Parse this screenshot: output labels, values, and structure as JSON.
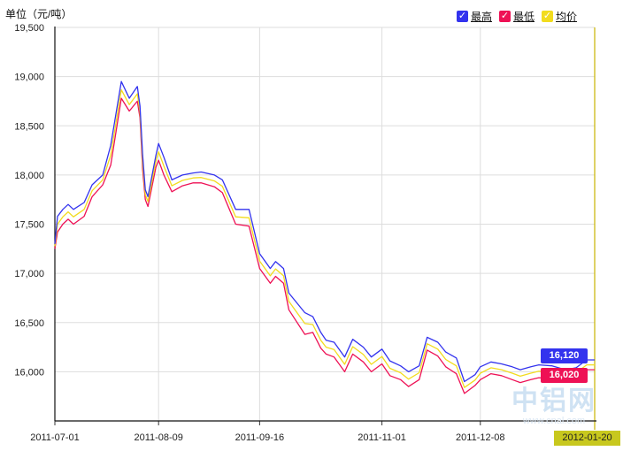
{
  "unit_label": "单位（元/吨）",
  "legend": [
    {
      "key": "high",
      "label": "最高",
      "color": "#3333ee",
      "checked": true
    },
    {
      "key": "low",
      "label": "最低",
      "color": "#ee1155",
      "checked": true
    },
    {
      "key": "avg",
      "label": "均价",
      "color": "#f2dc1e",
      "checked": true
    }
  ],
  "badges": {
    "high_value": "16,120",
    "low_value": "16,020"
  },
  "current_date": "2012-01-20",
  "watermark": {
    "big": "中铝网",
    "small": "www.cnal.com"
  },
  "chart_data": {
    "type": "line",
    "x_ticks": [
      "2011-07-01",
      "2011-08-09",
      "2011-09-16",
      "2011-11-01",
      "2011-12-08"
    ],
    "x_range": [
      "2011-07-01",
      "2012-01-20"
    ],
    "y_ticks": [
      "16,000",
      "16,500",
      "17,000",
      "17,500",
      "18,000",
      "18,500",
      "19,000",
      "19,500"
    ],
    "ylim": [
      15500,
      19500
    ],
    "grid": true,
    "legend_position": "top-right",
    "x": [
      "2011-07-01",
      "2011-07-02",
      "2011-07-04",
      "2011-07-06",
      "2011-07-08",
      "2011-07-12",
      "2011-07-15",
      "2011-07-19",
      "2011-07-22",
      "2011-07-26",
      "2011-07-29",
      "2011-08-01",
      "2011-08-02",
      "2011-08-03",
      "2011-08-04",
      "2011-08-05",
      "2011-08-08",
      "2011-08-09",
      "2011-08-11",
      "2011-08-14",
      "2011-08-18",
      "2011-08-22",
      "2011-08-25",
      "2011-08-30",
      "2011-09-02",
      "2011-09-07",
      "2011-09-12",
      "2011-09-16",
      "2011-09-20",
      "2011-09-22",
      "2011-09-25",
      "2011-09-27",
      "2011-10-03",
      "2011-10-06",
      "2011-10-09",
      "2011-10-11",
      "2011-10-14",
      "2011-10-18",
      "2011-10-21",
      "2011-10-25",
      "2011-10-28",
      "2011-11-01",
      "2011-11-04",
      "2011-11-08",
      "2011-11-11",
      "2011-11-15",
      "2011-11-18",
      "2011-11-22",
      "2011-11-25",
      "2011-11-29",
      "2011-12-02",
      "2011-12-06",
      "2011-12-08",
      "2011-12-12",
      "2011-12-16",
      "2011-12-20",
      "2011-12-23",
      "2011-12-27",
      "2011-12-30",
      "2012-01-04",
      "2012-01-09",
      "2012-01-13",
      "2012-01-17",
      "2012-01-20"
    ],
    "series": [
      {
        "name": "最高",
        "color": "#3333ee",
        "values": [
          17300,
          17580,
          17650,
          17700,
          17650,
          17720,
          17900,
          18000,
          18300,
          18950,
          18780,
          18900,
          18700,
          18200,
          17850,
          17780,
          18200,
          18320,
          18180,
          17950,
          18000,
          18020,
          18030,
          18000,
          17950,
          17650,
          17650,
          17200,
          17050,
          17120,
          17050,
          16800,
          16600,
          16560,
          16400,
          16320,
          16300,
          16150,
          16330,
          16250,
          16150,
          16230,
          16110,
          16060,
          16000,
          16060,
          16350,
          16300,
          16200,
          16140,
          15900,
          15970,
          16050,
          16100,
          16080,
          16050,
          16020,
          16050,
          16070,
          16060,
          16020,
          16040,
          16120,
          16120
        ]
      },
      {
        "name": "最低",
        "color": "#ee1155",
        "values": [
          17250,
          17420,
          17500,
          17550,
          17500,
          17580,
          17780,
          17900,
          18100,
          18780,
          18650,
          18750,
          18580,
          18050,
          17750,
          17680,
          18080,
          18150,
          18000,
          17830,
          17890,
          17920,
          17920,
          17880,
          17820,
          17500,
          17480,
          17050,
          16900,
          16970,
          16900,
          16630,
          16380,
          16400,
          16240,
          16180,
          16150,
          16000,
          16180,
          16100,
          16000,
          16080,
          15960,
          15920,
          15850,
          15920,
          16220,
          16160,
          16050,
          15980,
          15780,
          15860,
          15920,
          15980,
          15960,
          15920,
          15890,
          15920,
          15940,
          15930,
          15900,
          15940,
          16020,
          16020
        ]
      },
      {
        "name": "均价",
        "color": "#f2dc1e",
        "values": [
          17275,
          17500,
          17575,
          17625,
          17575,
          17650,
          17840,
          17950,
          18200,
          18865,
          18715,
          18825,
          18640,
          18125,
          17800,
          17730,
          18140,
          18235,
          18090,
          17890,
          17945,
          17970,
          17975,
          17940,
          17885,
          17575,
          17565,
          17125,
          16975,
          17045,
          16975,
          16715,
          16490,
          16480,
          16320,
          16250,
          16225,
          16075,
          16255,
          16175,
          16075,
          16155,
          16035,
          15990,
          15925,
          15990,
          16285,
          16230,
          16125,
          16060,
          15840,
          15915,
          15985,
          16040,
          16020,
          15985,
          15955,
          15985,
          16005,
          15995,
          15960,
          15990,
          16070,
          16070
        ]
      }
    ]
  }
}
